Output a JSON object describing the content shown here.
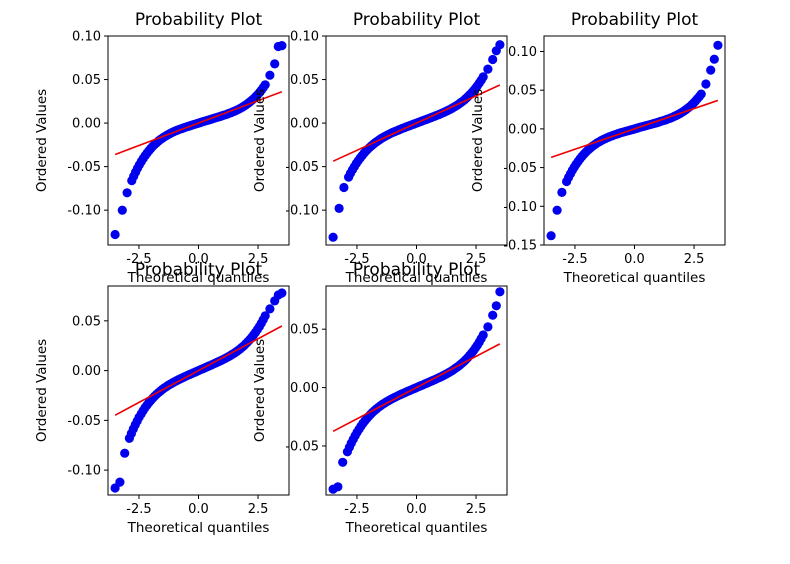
{
  "chart_data": [
    {
      "type": "scatter",
      "title": "Probability Plot",
      "xlabel": "Theoretical quantiles",
      "ylabel": "Ordered Values",
      "xlim": [
        -3.8,
        3.8
      ],
      "ylim": [
        -0.14,
        0.1
      ],
      "x_ticks": [
        "-2.5",
        "0.0",
        "2.5"
      ],
      "y_ticks": [
        "-0.10",
        "-0.05",
        "0.00",
        "0.05",
        "0.10"
      ],
      "fit_line": {
        "slope": 0.0103,
        "intercept": 0.0
      },
      "lower_tail": [
        [
          -3.5,
          -0.128
        ],
        [
          -3.2,
          -0.1
        ],
        [
          -3.0,
          -0.08
        ],
        [
          -2.8,
          -0.066
        ]
      ],
      "upper_tail": [
        [
          2.8,
          0.044
        ],
        [
          3.0,
          0.055
        ],
        [
          3.2,
          0.068
        ],
        [
          3.35,
          0.088
        ],
        [
          3.5,
          0.089
        ]
      ],
      "series": [
        {
          "color": "#0000ee"
        }
      ],
      "line_color": "#ee0000"
    },
    {
      "type": "scatter",
      "title": "Probability Plot",
      "xlabel": "Theoretical quantiles",
      "ylabel": "Ordered Values",
      "xlim": [
        -3.8,
        3.8
      ],
      "ylim": [
        -0.14,
        0.1
      ],
      "x_ticks": [
        "-2.5",
        "0.0",
        "2.5"
      ],
      "y_ticks": [
        "-0.10",
        "-0.05",
        "0.00",
        "0.05",
        "0.10"
      ],
      "fit_line": {
        "slope": 0.0125,
        "intercept": 0.0
      },
      "lower_tail": [
        [
          -3.5,
          -0.131
        ],
        [
          -3.25,
          -0.098
        ],
        [
          -3.05,
          -0.074
        ],
        [
          -2.85,
          -0.062
        ]
      ],
      "upper_tail": [
        [
          2.8,
          0.053
        ],
        [
          3.0,
          0.062
        ],
        [
          3.2,
          0.073
        ],
        [
          3.35,
          0.083
        ],
        [
          3.5,
          0.09
        ]
      ],
      "series": [
        {
          "color": "#0000ee"
        }
      ],
      "line_color": "#ee0000"
    },
    {
      "type": "scatter",
      "title": "Probability Plot",
      "xlabel": "Theoretical quantiles",
      "ylabel": "Ordered Values",
      "xlim": [
        -3.8,
        3.8
      ],
      "ylim": [
        -0.15,
        0.12
      ],
      "x_ticks": [
        "-2.5",
        "0.0",
        "2.5"
      ],
      "y_ticks": [
        "-0.15",
        "-0.10",
        "-0.05",
        "0.00",
        "0.05",
        "0.10"
      ],
      "fit_line": {
        "slope": 0.0105,
        "intercept": 0.0
      },
      "lower_tail": [
        [
          -3.5,
          -0.138
        ],
        [
          -3.25,
          -0.105
        ],
        [
          -3.05,
          -0.082
        ],
        [
          -2.85,
          -0.068
        ]
      ],
      "upper_tail": [
        [
          2.8,
          0.045
        ],
        [
          3.0,
          0.058
        ],
        [
          3.2,
          0.076
        ],
        [
          3.35,
          0.09
        ],
        [
          3.5,
          0.108
        ]
      ],
      "series": [
        {
          "color": "#0000ee"
        }
      ],
      "line_color": "#ee0000"
    },
    {
      "type": "scatter",
      "title": "Probability Plot",
      "xlabel": "Theoretical quantiles",
      "ylabel": "Ordered Values",
      "xlim": [
        -3.8,
        3.8
      ],
      "ylim": [
        -0.125,
        0.085
      ],
      "x_ticks": [
        "-2.5",
        "0.0",
        "2.5"
      ],
      "y_ticks": [
        "-0.10",
        "-0.05",
        "0.00",
        "0.05"
      ],
      "fit_line": {
        "slope": 0.0128,
        "intercept": 0.0
      },
      "lower_tail": [
        [
          -3.5,
          -0.118
        ],
        [
          -3.3,
          -0.112
        ],
        [
          -3.1,
          -0.083
        ],
        [
          -2.9,
          -0.068
        ]
      ],
      "upper_tail": [
        [
          2.8,
          0.055
        ],
        [
          3.0,
          0.062
        ],
        [
          3.2,
          0.07
        ],
        [
          3.35,
          0.076
        ],
        [
          3.5,
          0.078
        ]
      ],
      "series": [
        {
          "color": "#0000ee"
        }
      ],
      "line_color": "#ee0000"
    },
    {
      "type": "scatter",
      "title": "Probability Plot",
      "xlabel": "Theoretical quantiles",
      "ylabel": "Ordered Values",
      "xlim": [
        -3.8,
        3.8
      ],
      "ylim": [
        -0.092,
        0.087
      ],
      "x_ticks": [
        "-2.5",
        "0.0",
        "2.5"
      ],
      "y_ticks": [
        "-0.05",
        "0.00",
        "0.05"
      ],
      "fit_line": {
        "slope": 0.0107,
        "intercept": 0.0
      },
      "lower_tail": [
        [
          -3.5,
          -0.087
        ],
        [
          -3.3,
          -0.085
        ],
        [
          -3.1,
          -0.064
        ],
        [
          -2.9,
          -0.055
        ]
      ],
      "upper_tail": [
        [
          2.8,
          0.045
        ],
        [
          3.0,
          0.052
        ],
        [
          3.2,
          0.062
        ],
        [
          3.35,
          0.07
        ],
        [
          3.5,
          0.082
        ]
      ],
      "series": [
        {
          "color": "#0000ee"
        }
      ],
      "line_color": "#ee0000"
    }
  ]
}
